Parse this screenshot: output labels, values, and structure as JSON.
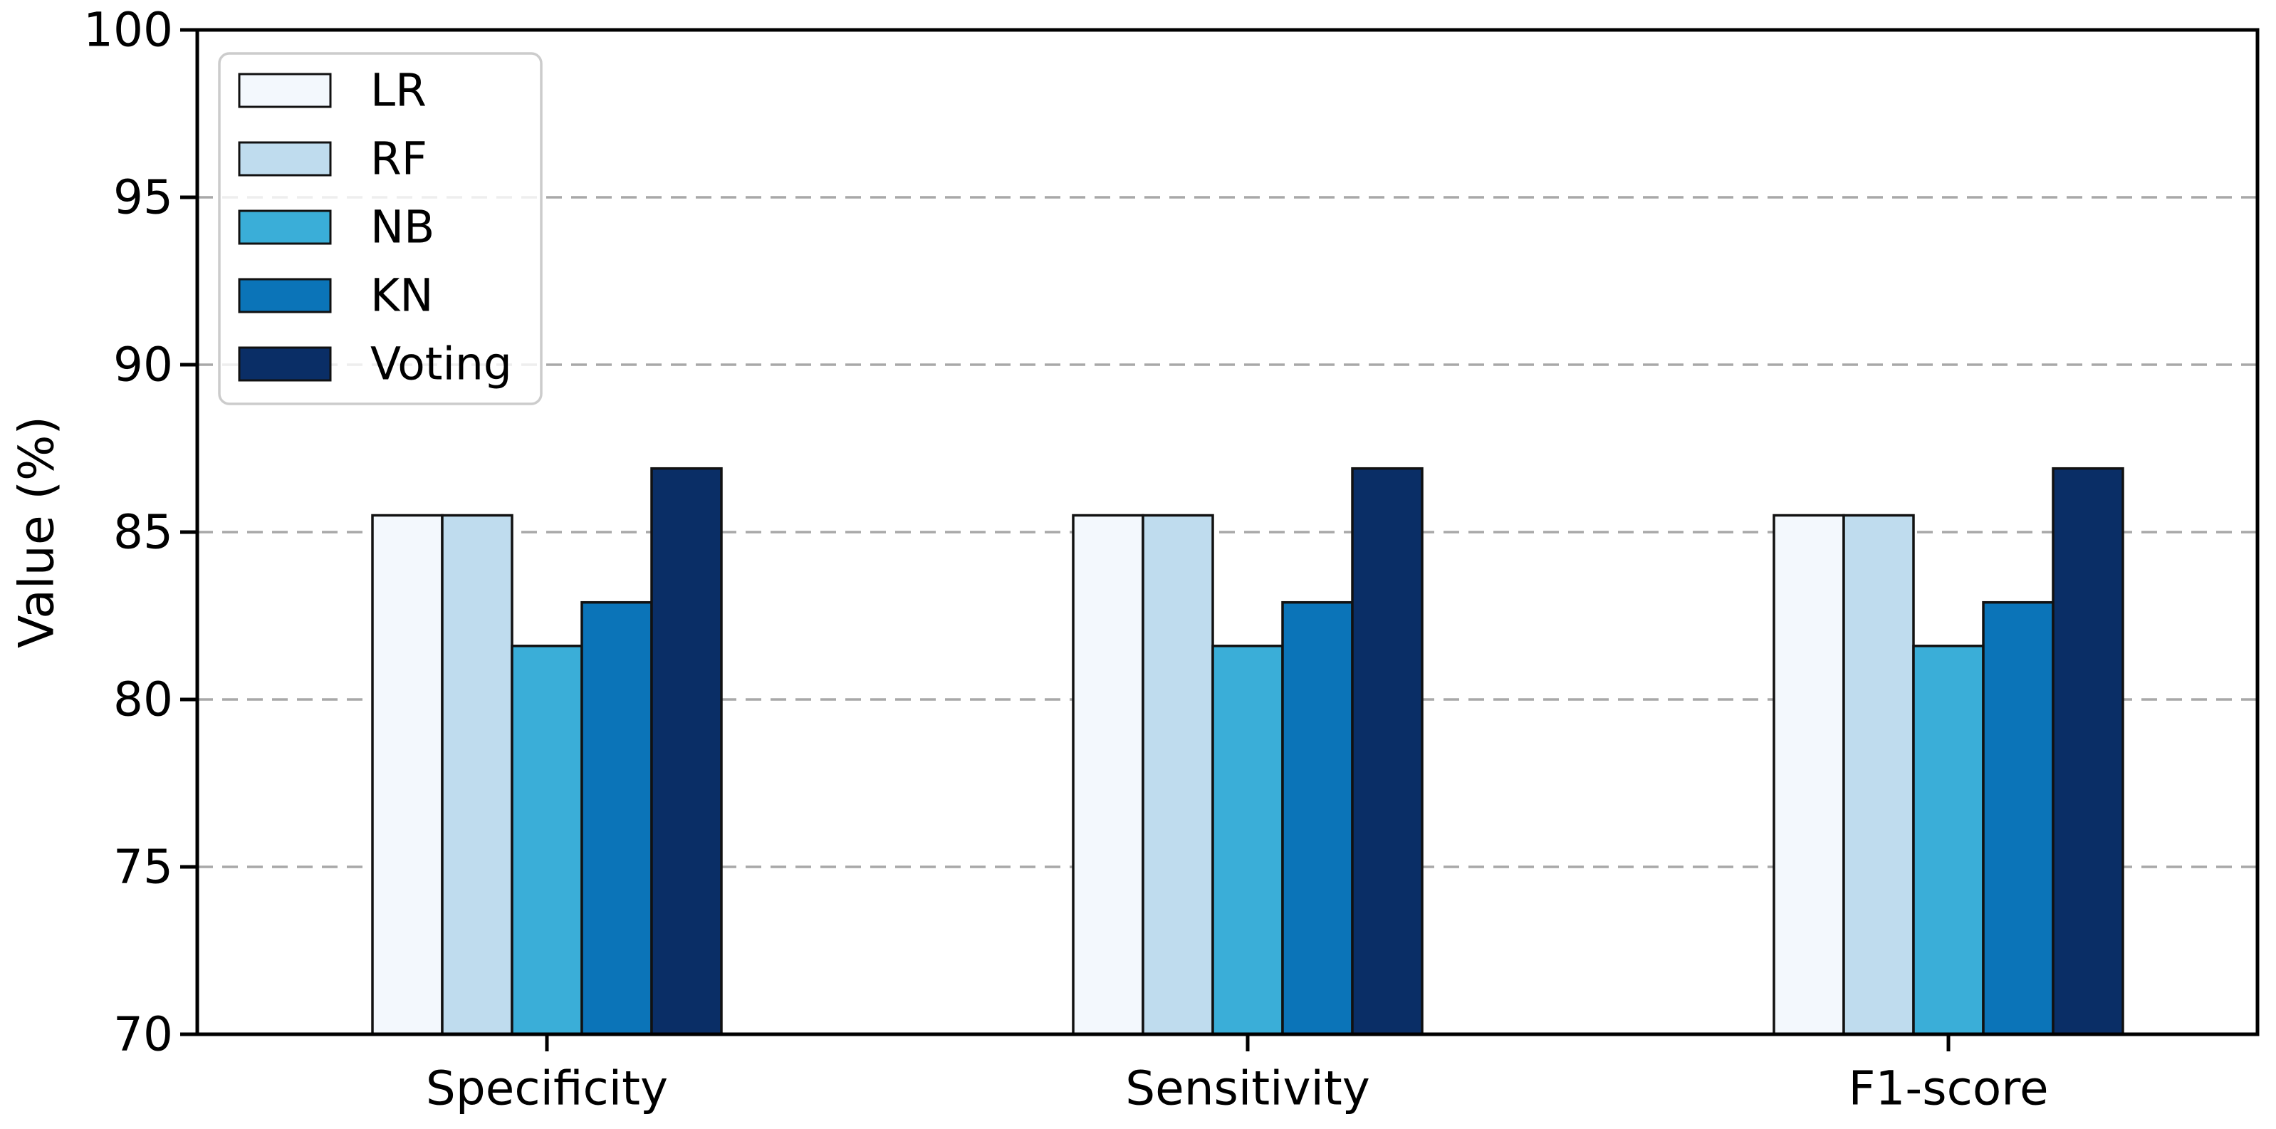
{
  "chart_data": {
    "type": "bar",
    "title": "",
    "xlabel": "",
    "ylabel": "Value (%)",
    "ylim": [
      70,
      100
    ],
    "yticks": [
      70,
      75,
      80,
      85,
      90,
      95,
      100
    ],
    "ytick_labels": [
      "70",
      "75",
      "80",
      "85",
      "90",
      "95",
      "100"
    ],
    "categories": [
      "Specificity",
      "Sensitivity",
      "F1-score"
    ],
    "series": [
      {
        "name": "LR",
        "color": "#f3f8fd",
        "values": [
          85.5,
          85.5,
          85.5
        ]
      },
      {
        "name": "RF",
        "color": "#bfdcee",
        "values": [
          85.5,
          85.5,
          85.5
        ]
      },
      {
        "name": "NB",
        "color": "#3aaed8",
        "values": [
          81.6,
          81.6,
          81.6
        ]
      },
      {
        "name": "KN",
        "color": "#0b74b8",
        "values": [
          82.9,
          82.9,
          82.9
        ]
      },
      {
        "name": "Voting",
        "color": "#0a2e66",
        "values": [
          86.9,
          86.9,
          86.9
        ]
      }
    ],
    "legend": {
      "position": "upper-left",
      "labels": [
        "LR",
        "RF",
        "NB",
        "KN",
        "Voting"
      ]
    },
    "grid": {
      "axis": "y",
      "style": "dashed",
      "on": true
    },
    "colors": {
      "bar_edge": "#111111",
      "gridline": "#a8a8a8",
      "axis": "#000000",
      "legend_border": "#cccccc",
      "legend_background": "#ffffff",
      "background": "#ffffff",
      "text": "#000000"
    }
  }
}
